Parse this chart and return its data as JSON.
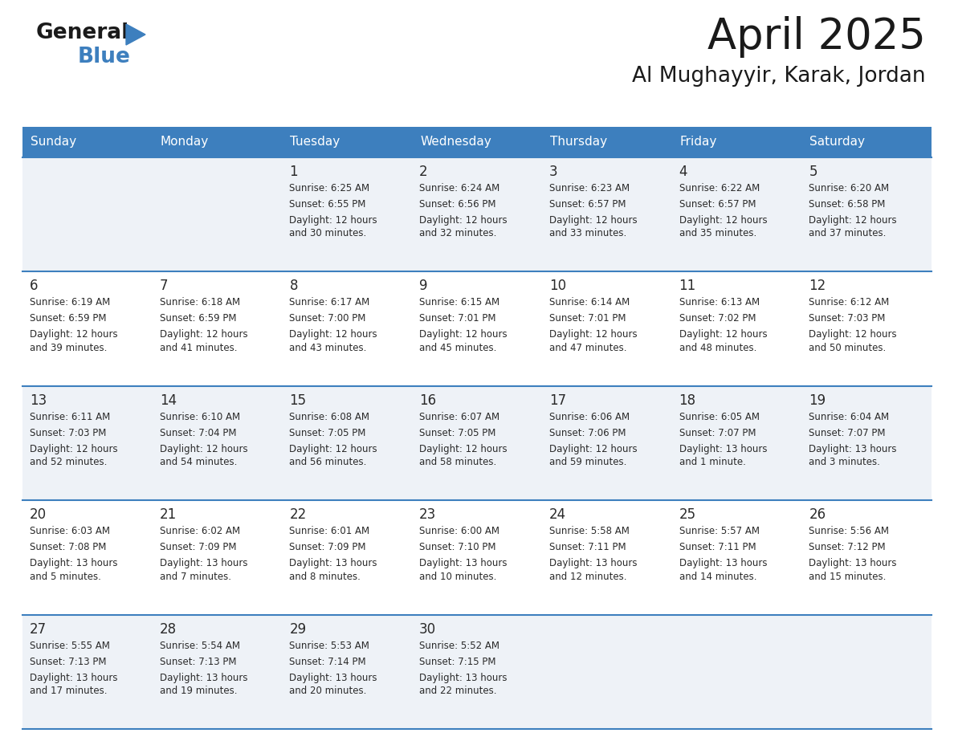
{
  "title": "April 2025",
  "subtitle": "Al Mughayyir, Karak, Jordan",
  "header_bg": "#3d7fbe",
  "header_text_color": "#ffffff",
  "row_bg_odd": "#eef2f7",
  "row_bg_even": "#ffffff",
  "border_color": "#3d7fbe",
  "title_color": "#1a1a1a",
  "subtitle_color": "#1a1a1a",
  "text_color": "#2a2a2a",
  "day_names": [
    "Sunday",
    "Monday",
    "Tuesday",
    "Wednesday",
    "Thursday",
    "Friday",
    "Saturday"
  ],
  "calendar": [
    [
      {
        "day": "",
        "sunrise": "",
        "sunset": "",
        "daylight": ""
      },
      {
        "day": "",
        "sunrise": "",
        "sunset": "",
        "daylight": ""
      },
      {
        "day": "1",
        "sunrise": "Sunrise: 6:25 AM",
        "sunset": "Sunset: 6:55 PM",
        "daylight": "Daylight: 12 hours\nand 30 minutes."
      },
      {
        "day": "2",
        "sunrise": "Sunrise: 6:24 AM",
        "sunset": "Sunset: 6:56 PM",
        "daylight": "Daylight: 12 hours\nand 32 minutes."
      },
      {
        "day": "3",
        "sunrise": "Sunrise: 6:23 AM",
        "sunset": "Sunset: 6:57 PM",
        "daylight": "Daylight: 12 hours\nand 33 minutes."
      },
      {
        "day": "4",
        "sunrise": "Sunrise: 6:22 AM",
        "sunset": "Sunset: 6:57 PM",
        "daylight": "Daylight: 12 hours\nand 35 minutes."
      },
      {
        "day": "5",
        "sunrise": "Sunrise: 6:20 AM",
        "sunset": "Sunset: 6:58 PM",
        "daylight": "Daylight: 12 hours\nand 37 minutes."
      }
    ],
    [
      {
        "day": "6",
        "sunrise": "Sunrise: 6:19 AM",
        "sunset": "Sunset: 6:59 PM",
        "daylight": "Daylight: 12 hours\nand 39 minutes."
      },
      {
        "day": "7",
        "sunrise": "Sunrise: 6:18 AM",
        "sunset": "Sunset: 6:59 PM",
        "daylight": "Daylight: 12 hours\nand 41 minutes."
      },
      {
        "day": "8",
        "sunrise": "Sunrise: 6:17 AM",
        "sunset": "Sunset: 7:00 PM",
        "daylight": "Daylight: 12 hours\nand 43 minutes."
      },
      {
        "day": "9",
        "sunrise": "Sunrise: 6:15 AM",
        "sunset": "Sunset: 7:01 PM",
        "daylight": "Daylight: 12 hours\nand 45 minutes."
      },
      {
        "day": "10",
        "sunrise": "Sunrise: 6:14 AM",
        "sunset": "Sunset: 7:01 PM",
        "daylight": "Daylight: 12 hours\nand 47 minutes."
      },
      {
        "day": "11",
        "sunrise": "Sunrise: 6:13 AM",
        "sunset": "Sunset: 7:02 PM",
        "daylight": "Daylight: 12 hours\nand 48 minutes."
      },
      {
        "day": "12",
        "sunrise": "Sunrise: 6:12 AM",
        "sunset": "Sunset: 7:03 PM",
        "daylight": "Daylight: 12 hours\nand 50 minutes."
      }
    ],
    [
      {
        "day": "13",
        "sunrise": "Sunrise: 6:11 AM",
        "sunset": "Sunset: 7:03 PM",
        "daylight": "Daylight: 12 hours\nand 52 minutes."
      },
      {
        "day": "14",
        "sunrise": "Sunrise: 6:10 AM",
        "sunset": "Sunset: 7:04 PM",
        "daylight": "Daylight: 12 hours\nand 54 minutes."
      },
      {
        "day": "15",
        "sunrise": "Sunrise: 6:08 AM",
        "sunset": "Sunset: 7:05 PM",
        "daylight": "Daylight: 12 hours\nand 56 minutes."
      },
      {
        "day": "16",
        "sunrise": "Sunrise: 6:07 AM",
        "sunset": "Sunset: 7:05 PM",
        "daylight": "Daylight: 12 hours\nand 58 minutes."
      },
      {
        "day": "17",
        "sunrise": "Sunrise: 6:06 AM",
        "sunset": "Sunset: 7:06 PM",
        "daylight": "Daylight: 12 hours\nand 59 minutes."
      },
      {
        "day": "18",
        "sunrise": "Sunrise: 6:05 AM",
        "sunset": "Sunset: 7:07 PM",
        "daylight": "Daylight: 13 hours\nand 1 minute."
      },
      {
        "day": "19",
        "sunrise": "Sunrise: 6:04 AM",
        "sunset": "Sunset: 7:07 PM",
        "daylight": "Daylight: 13 hours\nand 3 minutes."
      }
    ],
    [
      {
        "day": "20",
        "sunrise": "Sunrise: 6:03 AM",
        "sunset": "Sunset: 7:08 PM",
        "daylight": "Daylight: 13 hours\nand 5 minutes."
      },
      {
        "day": "21",
        "sunrise": "Sunrise: 6:02 AM",
        "sunset": "Sunset: 7:09 PM",
        "daylight": "Daylight: 13 hours\nand 7 minutes."
      },
      {
        "day": "22",
        "sunrise": "Sunrise: 6:01 AM",
        "sunset": "Sunset: 7:09 PM",
        "daylight": "Daylight: 13 hours\nand 8 minutes."
      },
      {
        "day": "23",
        "sunrise": "Sunrise: 6:00 AM",
        "sunset": "Sunset: 7:10 PM",
        "daylight": "Daylight: 13 hours\nand 10 minutes."
      },
      {
        "day": "24",
        "sunrise": "Sunrise: 5:58 AM",
        "sunset": "Sunset: 7:11 PM",
        "daylight": "Daylight: 13 hours\nand 12 minutes."
      },
      {
        "day": "25",
        "sunrise": "Sunrise: 5:57 AM",
        "sunset": "Sunset: 7:11 PM",
        "daylight": "Daylight: 13 hours\nand 14 minutes."
      },
      {
        "day": "26",
        "sunrise": "Sunrise: 5:56 AM",
        "sunset": "Sunset: 7:12 PM",
        "daylight": "Daylight: 13 hours\nand 15 minutes."
      }
    ],
    [
      {
        "day": "27",
        "sunrise": "Sunrise: 5:55 AM",
        "sunset": "Sunset: 7:13 PM",
        "daylight": "Daylight: 13 hours\nand 17 minutes."
      },
      {
        "day": "28",
        "sunrise": "Sunrise: 5:54 AM",
        "sunset": "Sunset: 7:13 PM",
        "daylight": "Daylight: 13 hours\nand 19 minutes."
      },
      {
        "day": "29",
        "sunrise": "Sunrise: 5:53 AM",
        "sunset": "Sunset: 7:14 PM",
        "daylight": "Daylight: 13 hours\nand 20 minutes."
      },
      {
        "day": "30",
        "sunrise": "Sunrise: 5:52 AM",
        "sunset": "Sunset: 7:15 PM",
        "daylight": "Daylight: 13 hours\nand 22 minutes."
      },
      {
        "day": "",
        "sunrise": "",
        "sunset": "",
        "daylight": ""
      },
      {
        "day": "",
        "sunrise": "",
        "sunset": "",
        "daylight": ""
      },
      {
        "day": "",
        "sunrise": "",
        "sunset": "",
        "daylight": ""
      }
    ]
  ],
  "logo_general_color": "#1a1a1a",
  "logo_blue_color": "#3d7fbe",
  "logo_triangle_color": "#3d7fbe"
}
